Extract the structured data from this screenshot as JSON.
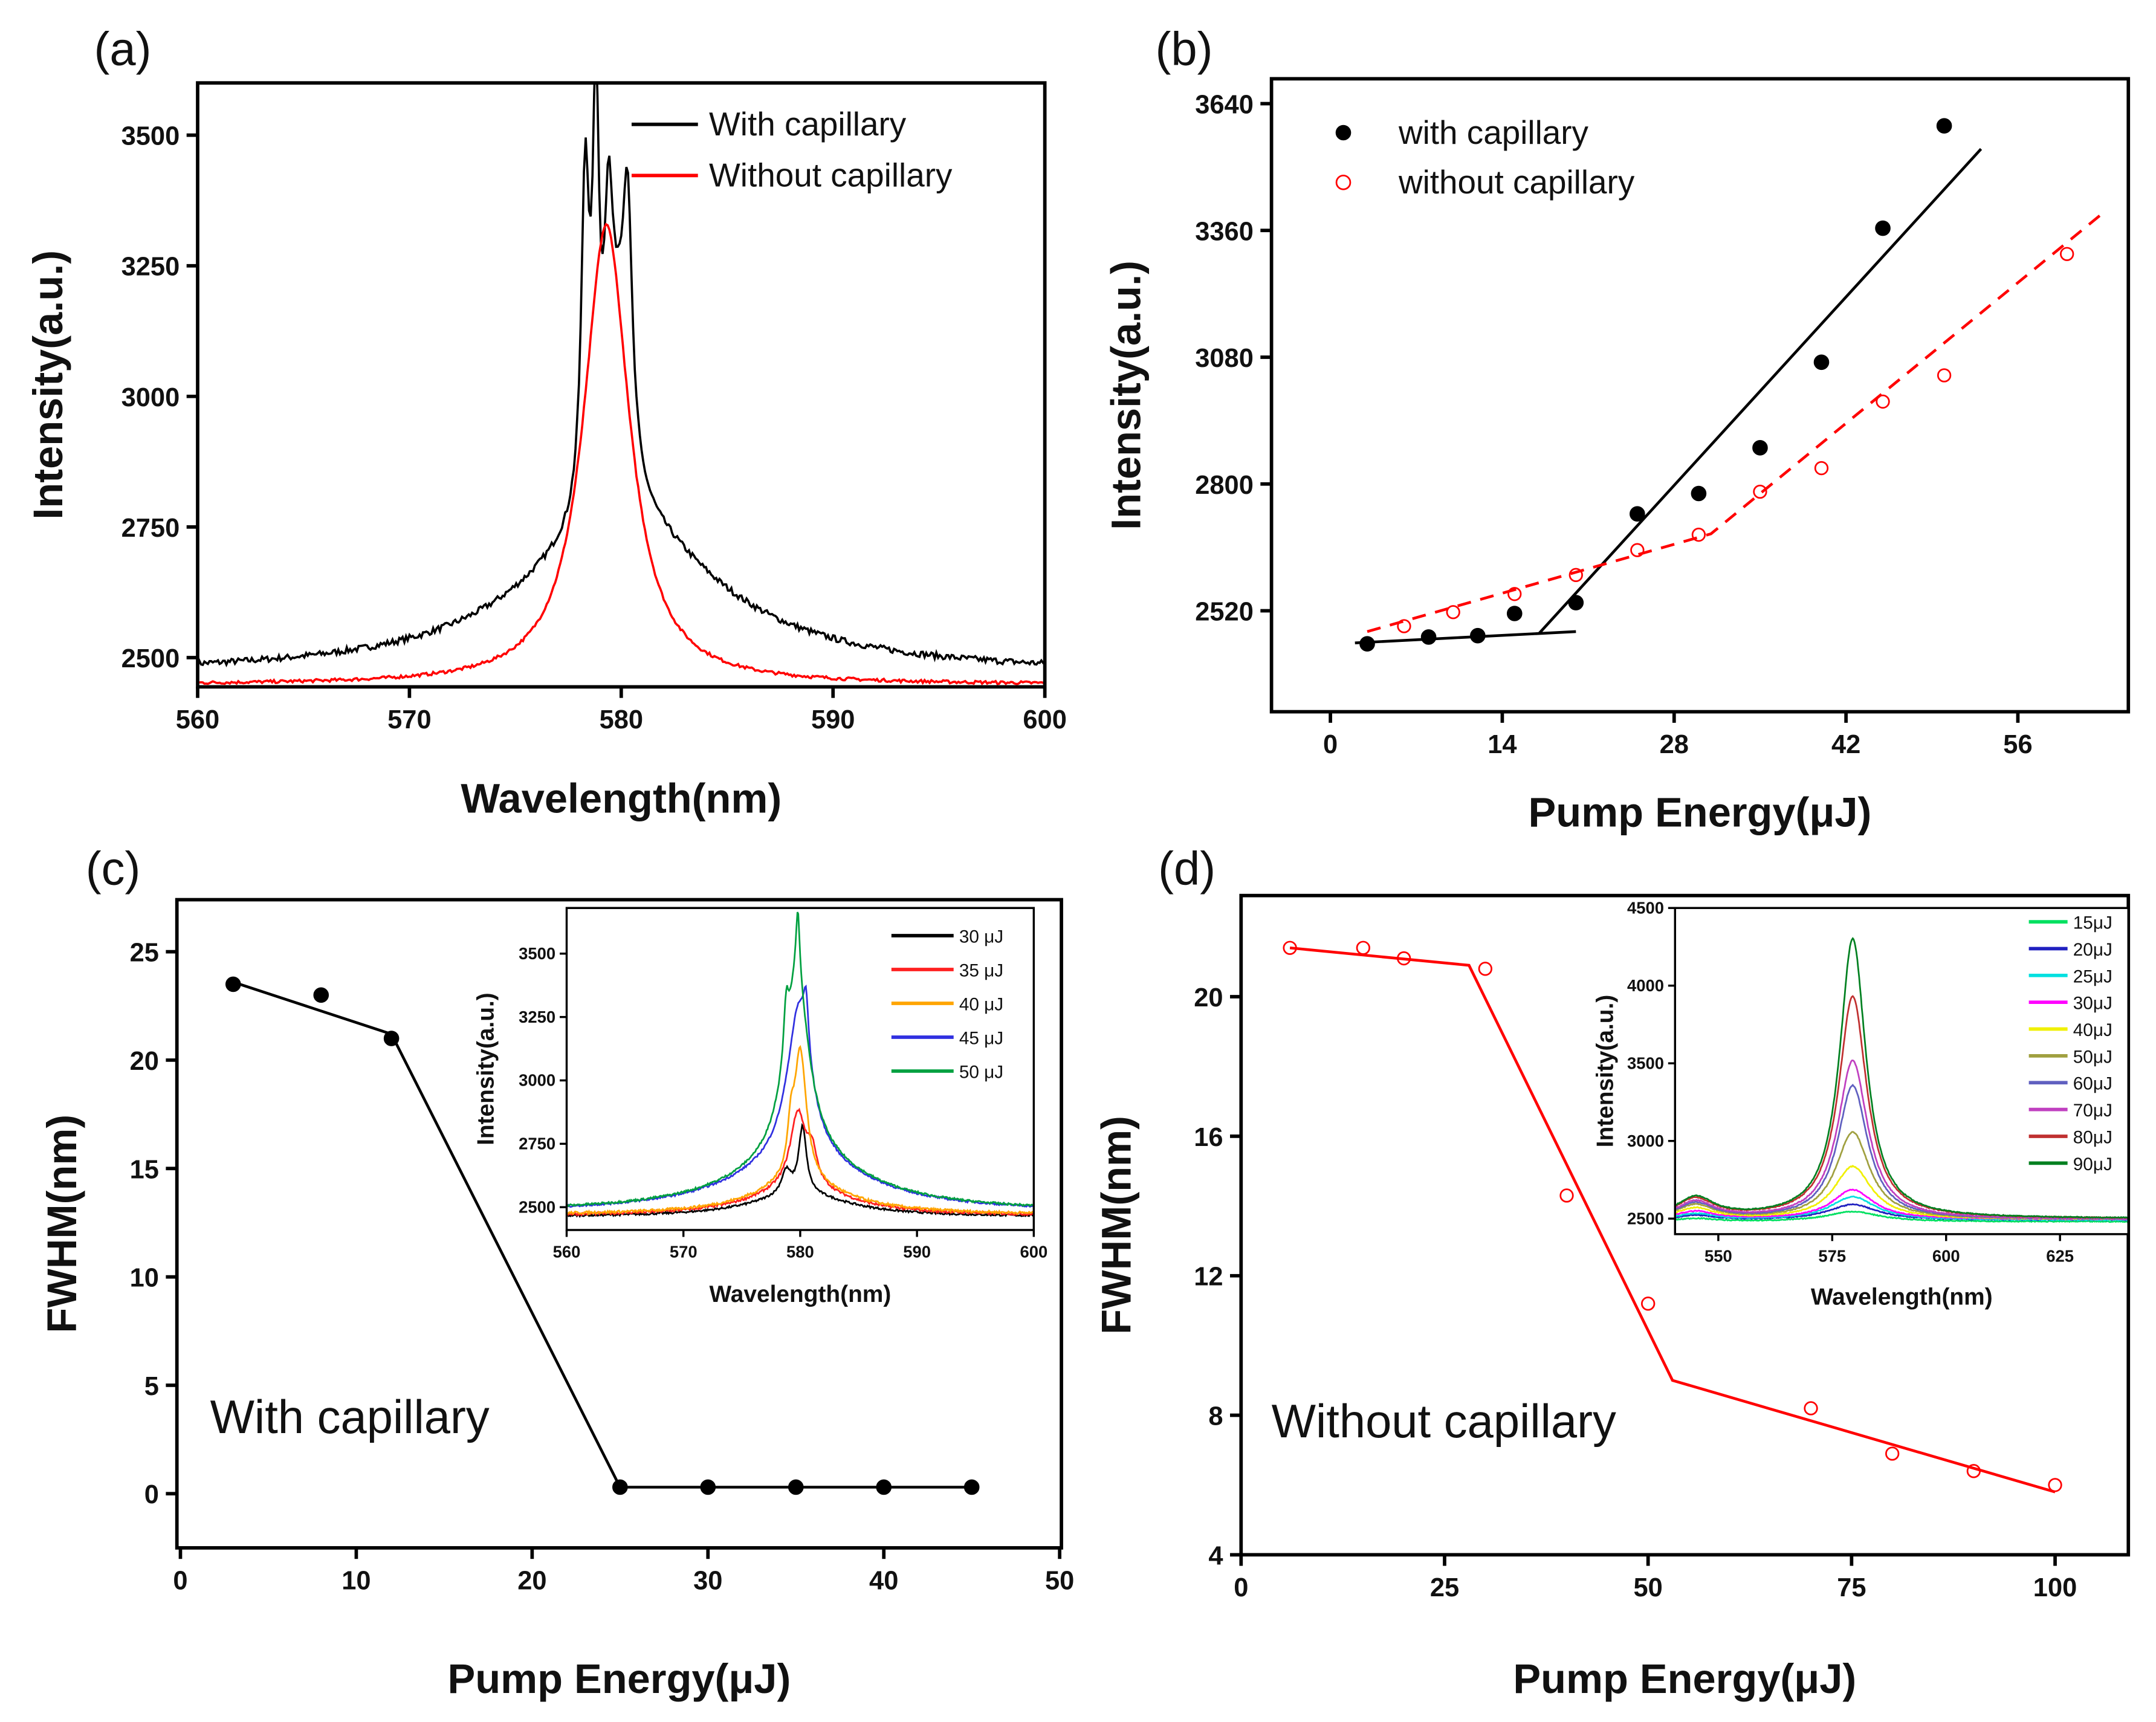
{
  "chart_data": [
    {
      "id": "a",
      "type": "line",
      "panel_label": "(a)",
      "xlabel": "Wavelength(nm)",
      "ylabel": "Intensity(a.u.)",
      "xlim": [
        560,
        600
      ],
      "ylim": [
        2444,
        3600
      ],
      "xticks": [
        560,
        570,
        580,
        590,
        600
      ],
      "yticks": [
        2500,
        2750,
        3000,
        3250,
        3500
      ],
      "legend": "top-right",
      "series": [
        {
          "name": "With capillary",
          "color": "#000000",
          "baseline": 2468,
          "noise": 6,
          "peaks": [
            [
              580,
              290,
              11
            ],
            [
              578.3,
              620,
              0.45
            ],
            [
              578.8,
              700,
              0.35
            ],
            [
              579.4,
              420,
              0.5
            ],
            [
              580.3,
              430,
              0.5
            ],
            [
              579.9,
              300,
              1.2
            ]
          ]
        },
        {
          "name": "Without capillary",
          "color": "#ff0000",
          "baseline": 2448,
          "noise": 3,
          "peaks": [
            [
              579.3,
              880,
              2.6
            ]
          ]
        }
      ]
    },
    {
      "id": "b",
      "type": "scatter",
      "panel_label": "(b)",
      "xlabel": "Pump Energy(μJ)",
      "ylabel": "Intensity(a.u.)",
      "xlim": [
        -4.8,
        65
      ],
      "ylim": [
        2297,
        3695
      ],
      "xticks": [
        0,
        14,
        28,
        42,
        56
      ],
      "yticks": [
        2520,
        2800,
        3080,
        3360,
        3640
      ],
      "legend": "top-left",
      "series": [
        {
          "name": "with capillary",
          "color": "#000000",
          "marker": "filled-circle",
          "x": [
            3,
            8,
            12,
            15,
            20,
            25,
            30,
            35,
            40,
            45,
            50
          ],
          "y": [
            2447,
            2462,
            2465,
            2514,
            2538,
            2734,
            2779,
            2880,
            3069,
            3365,
            3591
          ]
        },
        {
          "name": "without capillary",
          "color": "#ff0000",
          "marker": "open-circle",
          "x": [
            6,
            10,
            15,
            20,
            25,
            30,
            35,
            40,
            45,
            50,
            60
          ],
          "y": [
            2486,
            2517,
            2557,
            2599,
            2654,
            2688,
            2783,
            2835,
            2982,
            3040,
            3308
          ]
        }
      ],
      "fits": [
        {
          "color": "#000000",
          "dash": false,
          "points": [
            [
              2,
              2449
            ],
            [
              20,
              2474
            ]
          ]
        },
        {
          "color": "#000000",
          "dash": false,
          "points": [
            [
              17,
              2470
            ],
            [
              53,
              3540
            ]
          ]
        },
        {
          "color": "#ff0000",
          "dash": true,
          "points": [
            [
              3,
              2474
            ],
            [
              31,
              2690
            ],
            [
              63,
              3400
            ]
          ]
        }
      ]
    },
    {
      "id": "c",
      "type": "scatter",
      "panel_label": "(c)",
      "xlabel": "Pump Energy(μJ)",
      "ylabel": "FWHM(nm)",
      "xlim": [
        -0.2,
        50.1
      ],
      "ylim": [
        -2.5,
        27.4
      ],
      "xticks": [
        0,
        10,
        20,
        30,
        40,
        50
      ],
      "yticks": [
        0,
        5,
        10,
        15,
        20,
        25
      ],
      "annotation": "With capillary",
      "series": [
        {
          "name": "With capillary",
          "color": "#000000",
          "marker": "filled-circle",
          "x": [
            3,
            8,
            12,
            25,
            30,
            35,
            40,
            45
          ],
          "y": [
            23.5,
            23.0,
            21.0,
            0.3,
            0.3,
            0.3,
            0.3,
            0.3
          ]
        }
      ],
      "fits": [
        {
          "color": "#000000",
          "dash": false,
          "points": [
            [
              3,
              23.6
            ],
            [
              12,
              21.2
            ],
            [
              25,
              0.3
            ],
            [
              45,
              0.3
            ]
          ]
        }
      ]
    },
    {
      "id": "c-inset",
      "type": "line",
      "xlabel": "Wavelength(nm)",
      "ylabel": "Intensity(a.u.)",
      "xlim": [
        560,
        600
      ],
      "ylim": [
        2410,
        3680
      ],
      "xticks": [
        560,
        570,
        580,
        590,
        600
      ],
      "yticks": [
        2500,
        2750,
        3000,
        3250,
        3500
      ],
      "legend": "top-right",
      "series": [
        {
          "name": "30 μJ",
          "color": "#000000",
          "baseline": 2462,
          "noise": 4,
          "peaks": [
            [
              580,
              90,
              10
            ],
            [
              580.2,
              260,
              0.8
            ],
            [
              578.8,
              90,
              1
            ]
          ]
        },
        {
          "name": "35 μJ",
          "color": "#ff2020",
          "baseline": 2466,
          "noise": 5,
          "peaks": [
            [
              580,
              110,
              10
            ],
            [
              579.8,
              290,
              1.6
            ],
            [
              581,
              120,
              1
            ]
          ]
        },
        {
          "name": "40 μJ",
          "color": "#ffa500",
          "baseline": 2470,
          "noise": 5,
          "peaks": [
            [
              580,
              120,
              10
            ],
            [
              580,
              520,
              1.3
            ],
            [
              579.2,
              150,
              0.6
            ]
          ]
        },
        {
          "name": "45 μJ",
          "color": "#3030e0",
          "baseline": 2480,
          "noise": 4,
          "peaks": [
            [
              580,
              200,
              14
            ],
            [
              579.9,
              600,
              2.5
            ],
            [
              580.5,
              200,
              0.5
            ]
          ]
        },
        {
          "name": "50 μJ",
          "color": "#00a040",
          "baseline": 2482,
          "noise": 4,
          "peaks": [
            [
              580,
              200,
              14
            ],
            [
              579.7,
              700,
              2.6
            ],
            [
              579.8,
              280,
              0.4
            ],
            [
              578.8,
              200,
              0.5
            ]
          ]
        }
      ]
    },
    {
      "id": "d",
      "type": "scatter",
      "panel_label": "(d)",
      "xlabel": "Pump Energy(μJ)",
      "ylabel": "FWHM(nm)",
      "xlim": [
        0,
        109
      ],
      "ylim": [
        4,
        22.9
      ],
      "xticks": [
        0,
        25,
        50,
        75,
        100
      ],
      "yticks": [
        4,
        8,
        12,
        16,
        20
      ],
      "annotation": "Without capillary",
      "series": [
        {
          "name": "Without capillary",
          "color": "#ff0000",
          "marker": "open-circle",
          "x": [
            6,
            15,
            20,
            30,
            40,
            50,
            70,
            80,
            90,
            100
          ],
          "y": [
            21.4,
            21.4,
            21.1,
            20.8,
            14.3,
            11.2,
            8.2,
            6.9,
            6.4,
            6.0
          ]
        }
      ],
      "fits": [
        {
          "color": "#ff0000",
          "dash": false,
          "points": [
            [
              6,
              21.4
            ],
            [
              28,
              20.9
            ],
            [
              53,
              9.0
            ],
            [
              100,
              5.8
            ]
          ]
        }
      ]
    },
    {
      "id": "d-inset",
      "type": "line",
      "xlabel": "Wavelength(nm)",
      "ylabel": "Intensity(a.u.)",
      "xlim": [
        540.5,
        640
      ],
      "ylim": [
        2400,
        4500
      ],
      "xticks": [
        550,
        575,
        600,
        625
      ],
      "yticks": [
        2500,
        3000,
        3500,
        4000,
        4500
      ],
      "legend": "top-right",
      "series": [
        {
          "name": "15μJ",
          "color": "#00e060",
          "baseline": 2480,
          "noise": 3,
          "peaks": [
            [
              579.5,
              65,
              14
            ],
            [
              545,
              20,
              10
            ]
          ]
        },
        {
          "name": "20μJ",
          "color": "#2020c0",
          "baseline": 2490,
          "noise": 3,
          "peaks": [
            [
              579.5,
              100,
              13
            ],
            [
              545,
              30,
              10
            ]
          ]
        },
        {
          "name": "25μJ",
          "color": "#00e0e0",
          "baseline": 2490,
          "noise": 3,
          "peaks": [
            [
              579.5,
              150,
              12
            ],
            [
              545,
              40,
              10
            ]
          ]
        },
        {
          "name": "30μJ",
          "color": "#ff00ff",
          "baseline": 2495,
          "noise": 3,
          "peaks": [
            [
              579.5,
              190,
              11
            ],
            [
              545,
              50,
              10
            ]
          ]
        },
        {
          "name": "40μJ",
          "color": "#f0f000",
          "baseline": 2495,
          "noise": 3,
          "peaks": [
            [
              579.5,
              340,
              10
            ],
            [
              545,
              70,
              10
            ]
          ]
        },
        {
          "name": "50μJ",
          "color": "#a0a040",
          "baseline": 2495,
          "noise": 3,
          "peaks": [
            [
              579.5,
              560,
              9
            ],
            [
              545,
              90,
              10
            ]
          ]
        },
        {
          "name": "60μJ",
          "color": "#6060c0",
          "baseline": 2495,
          "noise": 3,
          "peaks": [
            [
              579.5,
              860,
              8
            ],
            [
              545,
              100,
              10
            ]
          ]
        },
        {
          "name": "70μJ",
          "color": "#c040c0",
          "baseline": 2495,
          "noise": 3,
          "peaks": [
            [
              579.5,
              1020,
              8
            ],
            [
              545,
              110,
              10
            ]
          ]
        },
        {
          "name": "80μJ",
          "color": "#c03030",
          "baseline": 2500,
          "noise": 3,
          "peaks": [
            [
              579.5,
              1430,
              7.5
            ],
            [
              545,
              120,
              10
            ]
          ]
        },
        {
          "name": "90μJ",
          "color": "#008020",
          "baseline": 2500,
          "noise": 3,
          "peaks": [
            [
              579.5,
              1800,
              7
            ],
            [
              545,
              130,
              10
            ]
          ]
        }
      ]
    }
  ]
}
